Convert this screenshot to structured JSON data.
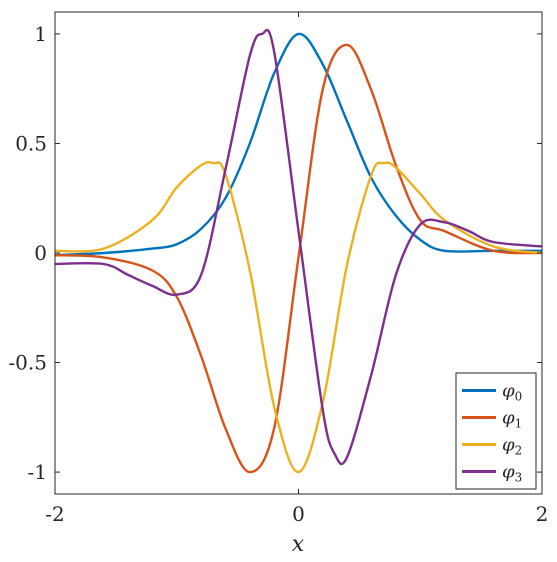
{
  "chart_data": {
    "type": "line",
    "xlabel": "x",
    "ylabel": "",
    "xlim": [
      -2,
      2
    ],
    "ylim": [
      -1.1,
      1.1
    ],
    "xticks": [
      {
        "value": -2,
        "label": "-2"
      },
      {
        "value": 0,
        "label": "0"
      },
      {
        "value": 2,
        "label": "2"
      }
    ],
    "yticks": [
      {
        "value": -1,
        "label": "-1"
      },
      {
        "value": -0.5,
        "label": "-0.5"
      },
      {
        "value": 0,
        "label": "0"
      },
      {
        "value": 0.5,
        "label": "0.5"
      },
      {
        "value": 1,
        "label": "1"
      }
    ],
    "grid": false,
    "legend_position": "bottom-right",
    "series": [
      {
        "name": "φ0",
        "base": "φ",
        "sub": "0",
        "color": "#0072BD",
        "x": [
          -2.0,
          -1.6,
          -1.2,
          -1.0,
          -0.8,
          -0.6,
          -0.4,
          -0.2,
          0.0,
          0.2,
          0.4,
          0.6,
          0.8,
          1.0,
          1.2,
          1.6,
          2.0
        ],
        "y": [
          -0.01,
          0.0,
          0.02,
          0.04,
          0.11,
          0.25,
          0.5,
          0.82,
          1.0,
          0.86,
          0.6,
          0.34,
          0.17,
          0.06,
          0.01,
          0.01,
          0.01
        ]
      },
      {
        "name": "φ1",
        "base": "φ",
        "sub": "1",
        "color": "#D95319",
        "x": [
          -2.0,
          -1.6,
          -1.2,
          -1.0,
          -0.8,
          -0.6,
          -0.4,
          -0.2,
          0.0,
          0.2,
          0.4,
          0.6,
          0.8,
          1.0,
          1.2,
          1.6,
          2.0
        ],
        "y": [
          -0.01,
          -0.02,
          -0.08,
          -0.2,
          -0.47,
          -0.8,
          -1.0,
          -0.8,
          -0.02,
          0.75,
          0.95,
          0.74,
          0.4,
          0.15,
          0.1,
          0.01,
          0.0
        ]
      },
      {
        "name": "φ2",
        "base": "φ",
        "sub": "2",
        "color": "#EDB120",
        "x": [
          -2.0,
          -1.6,
          -1.2,
          -1.0,
          -0.8,
          -0.7,
          -0.6,
          -0.4,
          -0.2,
          0.0,
          0.2,
          0.4,
          0.6,
          0.7,
          0.8,
          1.0,
          1.2,
          1.6,
          2.0
        ],
        "y": [
          0.01,
          0.02,
          0.15,
          0.3,
          0.4,
          0.41,
          0.36,
          -0.08,
          -0.7,
          -1.0,
          -0.68,
          -0.05,
          0.36,
          0.41,
          0.39,
          0.27,
          0.15,
          0.03,
          0.0
        ]
      },
      {
        "name": "φ3",
        "base": "φ",
        "sub": "3",
        "color": "#7E2F8E",
        "x": [
          -2.0,
          -1.6,
          -1.4,
          -1.2,
          -1.0,
          -0.8,
          -0.6,
          -0.4,
          -0.3,
          -0.2,
          0.0,
          0.2,
          0.3,
          0.4,
          0.6,
          0.8,
          1.0,
          1.2,
          1.4,
          1.6,
          2.0
        ],
        "y": [
          -0.05,
          -0.05,
          -0.1,
          -0.15,
          -0.19,
          -0.1,
          0.38,
          0.9,
          1.0,
          0.92,
          0.1,
          -0.72,
          -0.92,
          -0.93,
          -0.55,
          -0.1,
          0.13,
          0.14,
          0.1,
          0.05,
          0.03
        ]
      }
    ]
  }
}
